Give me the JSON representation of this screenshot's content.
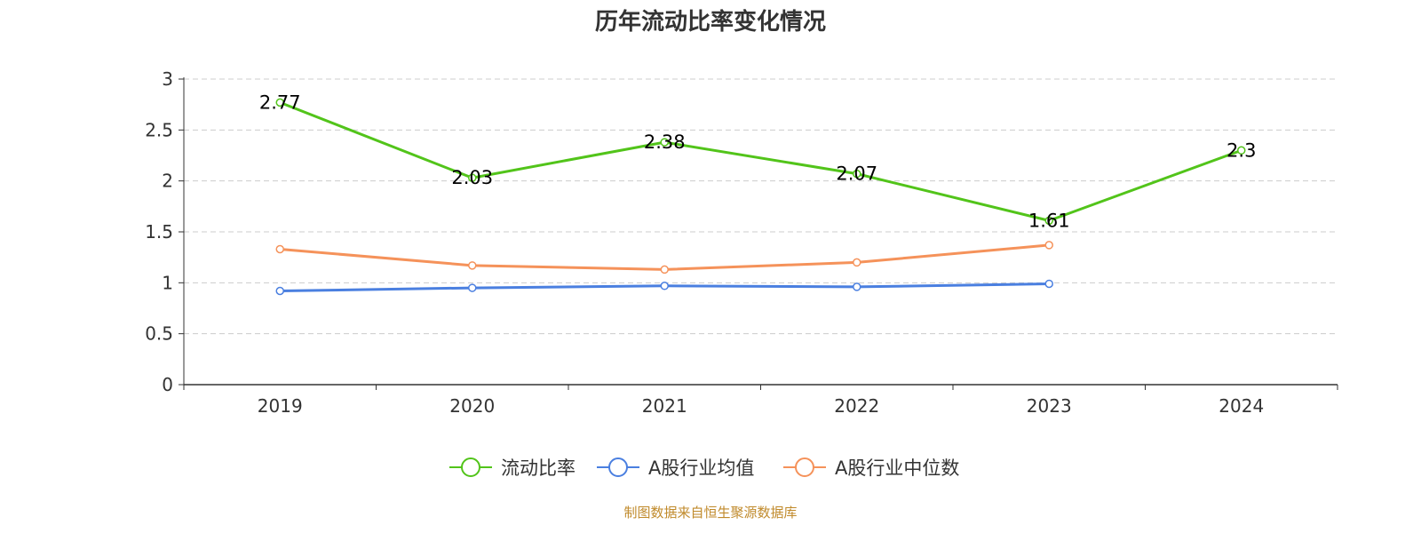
{
  "chart_data": {
    "type": "line",
    "title": "历年流动比率变化情况",
    "categories": [
      "2019",
      "2020",
      "2021",
      "2022",
      "2023",
      "2024"
    ],
    "ylim": [
      0,
      3
    ],
    "yticks": [
      "0",
      "0.5",
      "1",
      "1.5",
      "2",
      "2.5",
      "3"
    ],
    "grid": true,
    "legend_position": "bottom-center",
    "series": [
      {
        "name": "流动比率",
        "color": "#52c41a",
        "values": [
          2.77,
          2.03,
          2.38,
          2.07,
          1.61,
          2.3
        ],
        "labels": [
          "2.77",
          "2.03",
          "2.38",
          "2.07",
          "1.61",
          "2.3"
        ]
      },
      {
        "name": "A股行业均值",
        "color": "#4a7fe0",
        "values": [
          0.92,
          0.95,
          0.97,
          0.96,
          0.99,
          null
        ]
      },
      {
        "name": "A股行业中位数",
        "color": "#f5925a",
        "values": [
          1.33,
          1.17,
          1.13,
          1.2,
          1.37,
          null
        ]
      }
    ]
  },
  "source": "制图数据来自恒生聚源数据库"
}
